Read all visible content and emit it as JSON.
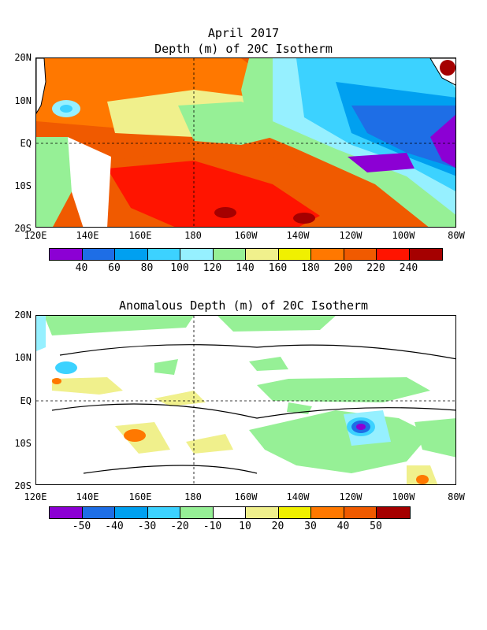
{
  "date_title": "April 2017",
  "panel1": {
    "title": "Depth (m) of 20C Isotherm",
    "lat_labels": [
      "20N",
      "10N",
      "EQ",
      "10S",
      "20S"
    ],
    "lon_labels": [
      "120E",
      "140E",
      "160E",
      "180",
      "160W",
      "140W",
      "120W",
      "100W",
      "80W"
    ],
    "colorbar_labels": [
      "40",
      "60",
      "80",
      "100",
      "120",
      "140",
      "160",
      "180",
      "200",
      "220",
      "240"
    ],
    "colorbar_colors": [
      "#8c00d4",
      "#1e6ee6",
      "#00a0f0",
      "#3cd2ff",
      "#96f0ff",
      "#96f096",
      "#f0f08c",
      "#f0f000",
      "#ff7800",
      "#f05a00",
      "#ff1400",
      "#a50000"
    ]
  },
  "panel2": {
    "title": "Anomalous Depth (m) of 20C Isotherm",
    "lat_labels": [
      "20N",
      "10N",
      "EQ",
      "10S",
      "20S"
    ],
    "lon_labels": [
      "120E",
      "140E",
      "160E",
      "180",
      "160W",
      "140W",
      "120W",
      "100W",
      "80W"
    ],
    "colorbar_labels": [
      "-50",
      "-40",
      "-30",
      "-20",
      "-10",
      "10",
      "20",
      "30",
      "40",
      "50"
    ],
    "colorbar_colors": [
      "#8c00d4",
      "#1e6ee6",
      "#00a0f0",
      "#3cd2ff",
      "#96f096",
      "#ffffff",
      "#f0f08c",
      "#f0f000",
      "#ff7800",
      "#f05a00",
      "#a50000"
    ]
  }
}
